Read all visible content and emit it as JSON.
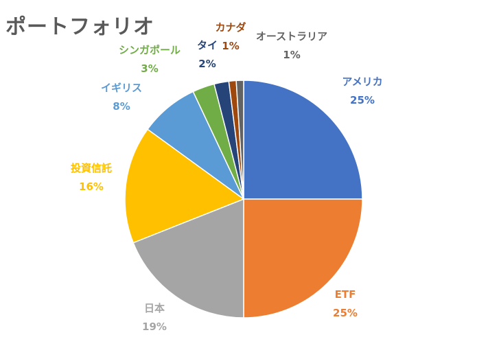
{
  "chart_data": {
    "type": "pie",
    "title": "ポートフォリオ",
    "legend": "none",
    "slices": [
      {
        "name": "アメリカ",
        "value": 25,
        "pct_label": "25%",
        "color": "#4472C4"
      },
      {
        "name": "ETF",
        "value": 25,
        "pct_label": "25%",
        "color": "#ED7D31"
      },
      {
        "name": "日本",
        "value": 19,
        "pct_label": "19%",
        "color": "#A5A5A5"
      },
      {
        "name": "投資信託",
        "value": 16,
        "pct_label": "16%",
        "color": "#FFC000"
      },
      {
        "name": "イギリス",
        "value": 8,
        "pct_label": "8%",
        "color": "#5B9BD5"
      },
      {
        "name": "シンガポール",
        "value": 3,
        "pct_label": "3%",
        "color": "#70AD47"
      },
      {
        "name": "タイ",
        "value": 2,
        "pct_label": "2%",
        "color": "#264478"
      },
      {
        "name": "カナダ",
        "value": 1,
        "pct_label": "1%",
        "color": "#9E480E"
      },
      {
        "name": "オーストラリア",
        "value": 1,
        "pct_label": "1%",
        "color": "#636363"
      }
    ]
  }
}
